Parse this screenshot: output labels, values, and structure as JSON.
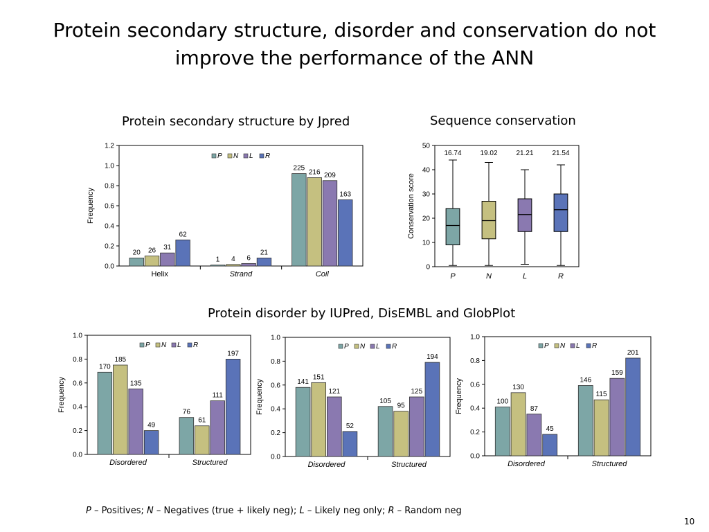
{
  "slide": {
    "title_line1": "Protein secondary structure, disorder and conservation do not",
    "title_line2": "improve the performance of the ANN",
    "panel_titles": {
      "secondary": "Protein secondary structure by Jpred",
      "conservation": "Sequence conservation",
      "disorder": "Protein disorder by IUPred, DisEMBL and GlobPlot"
    },
    "footnote": {
      "p": "P",
      "p_text": " – Positives; ",
      "n": "N",
      "n_text": " – Negatives (true + likely neg); ",
      "l": "L",
      "l_text": " – Likely neg only; ",
      "r": "R",
      "r_text": " – Random neg"
    },
    "page_number": "10"
  },
  "colors": {
    "P": "#7da6a6",
    "N": "#c5c080",
    "L": "#8a79b0",
    "R": "#5a73b8"
  },
  "chart_data": [
    {
      "id": "secondary-structure",
      "type": "bar",
      "ylabel": "Frequency",
      "ylim": [
        0,
        1.2
      ],
      "yticks": [
        "0.0",
        "0.2",
        "0.4",
        "0.6",
        "0.8",
        "1.0",
        "1.2"
      ],
      "categories": [
        "Helix",
        "Strand",
        "Coil"
      ],
      "italic_categories": false,
      "legend": [
        "P",
        "N",
        "L",
        "R"
      ],
      "legend_position": "top-center",
      "series": [
        {
          "name": "P",
          "values": [
            0.08,
            0.01,
            0.92
          ],
          "labels": [
            "20",
            "1",
            "225"
          ]
        },
        {
          "name": "N",
          "values": [
            0.1,
            0.015,
            0.88
          ],
          "labels": [
            "26",
            "4",
            "216"
          ]
        },
        {
          "name": "L",
          "values": [
            0.13,
            0.025,
            0.85
          ],
          "labels": [
            "31",
            "6",
            "209"
          ]
        },
        {
          "name": "R",
          "values": [
            0.26,
            0.08,
            0.66
          ],
          "labels": [
            "62",
            "21",
            "163"
          ]
        }
      ]
    },
    {
      "id": "sequence-conservation",
      "type": "box",
      "ylabel": "Conservation score",
      "ylim": [
        0,
        50
      ],
      "yticks": [
        "0",
        "10",
        "20",
        "30",
        "40",
        "50"
      ],
      "categories": [
        "P",
        "N",
        "L",
        "R"
      ],
      "boxes": [
        {
          "name": "P",
          "min": 0.5,
          "q1": 9,
          "median": 17,
          "q3": 24,
          "max": 44,
          "label": "16.74"
        },
        {
          "name": "N",
          "min": 0.5,
          "q1": 11.5,
          "median": 19,
          "q3": 27,
          "max": 43,
          "label": "19.02"
        },
        {
          "name": "L",
          "min": 1,
          "q1": 14.5,
          "median": 21.5,
          "q3": 28,
          "max": 40,
          "label": "21.21"
        },
        {
          "name": "R",
          "min": 0.5,
          "q1": 14.5,
          "median": 23.5,
          "q3": 30,
          "max": 42,
          "label": "21.54"
        }
      ]
    },
    {
      "id": "disorder-iupred",
      "type": "bar",
      "ylabel": "Frequency",
      "ylim": [
        0,
        1.0
      ],
      "yticks": [
        "0.0",
        "0.2",
        "0.4",
        "0.6",
        "0.8",
        "1.0"
      ],
      "categories": [
        "Disordered",
        "Structured"
      ],
      "italic_categories": true,
      "legend": [
        "P",
        "N",
        "L",
        "R"
      ],
      "legend_position": "top-center",
      "series": [
        {
          "name": "P",
          "values": [
            0.69,
            0.31
          ],
          "labels": [
            "170",
            "76"
          ]
        },
        {
          "name": "N",
          "values": [
            0.75,
            0.24
          ],
          "labels": [
            "185",
            "61"
          ]
        },
        {
          "name": "L",
          "values": [
            0.55,
            0.45
          ],
          "labels": [
            "135",
            "111"
          ]
        },
        {
          "name": "R",
          "values": [
            0.2,
            0.8
          ],
          "labels": [
            "49",
            "197"
          ]
        }
      ]
    },
    {
      "id": "disorder-disembl",
      "type": "bar",
      "ylabel": "Frequency",
      "ylim": [
        0,
        1.0
      ],
      "yticks": [
        "0.0",
        "0.2",
        "0.4",
        "0.6",
        "0.8",
        "1.0"
      ],
      "categories": [
        "Disordered",
        "Structured"
      ],
      "italic_categories": true,
      "legend": [
        "P",
        "N",
        "L",
        "R"
      ],
      "legend_position": "top-center",
      "series": [
        {
          "name": "P",
          "values": [
            0.58,
            0.42
          ],
          "labels": [
            "141",
            "105"
          ]
        },
        {
          "name": "N",
          "values": [
            0.62,
            0.38
          ],
          "labels": [
            "151",
            "95"
          ]
        },
        {
          "name": "L",
          "values": [
            0.5,
            0.5
          ],
          "labels": [
            "121",
            "125"
          ]
        },
        {
          "name": "R",
          "values": [
            0.21,
            0.79
          ],
          "labels": [
            "52",
            "194"
          ]
        }
      ]
    },
    {
      "id": "disorder-globplot",
      "type": "bar",
      "ylabel": "Frequency",
      "ylim": [
        0,
        1.0
      ],
      "yticks": [
        "0.0",
        "0.2",
        "0.4",
        "0.6",
        "0.8",
        "1.0"
      ],
      "categories": [
        "Disordered",
        "Structured"
      ],
      "italic_categories": true,
      "legend": [
        "P",
        "N",
        "L",
        "R"
      ],
      "legend_position": "top-center",
      "series": [
        {
          "name": "P",
          "values": [
            0.41,
            0.59
          ],
          "labels": [
            "100",
            "146"
          ]
        },
        {
          "name": "N",
          "values": [
            0.53,
            0.47
          ],
          "labels": [
            "130",
            "115"
          ]
        },
        {
          "name": "L",
          "values": [
            0.35,
            0.65
          ],
          "labels": [
            "87",
            "159"
          ]
        },
        {
          "name": "R",
          "values": [
            0.18,
            0.82
          ],
          "labels": [
            "45",
            "201"
          ]
        }
      ]
    }
  ]
}
